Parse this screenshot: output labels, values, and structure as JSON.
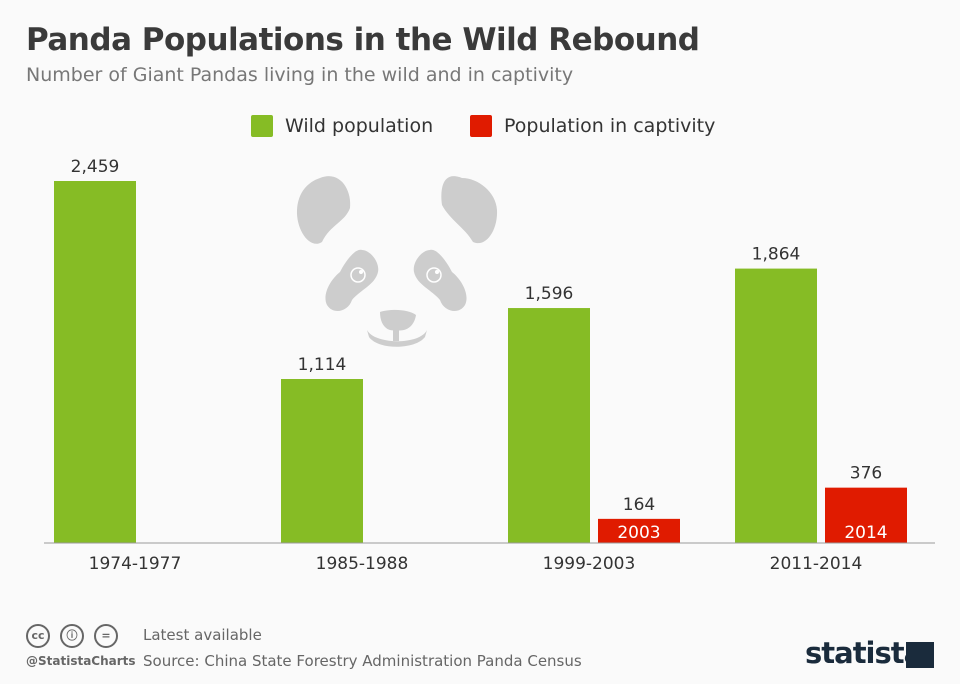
{
  "chart_data": {
    "type": "bar",
    "title": "Panda Populations in the Wild Rebound",
    "subtitle": "Number of Giant Pandas living in the wild and in captivity",
    "categories": [
      "1974-1977",
      "1985-1988",
      "1999-2003",
      "2011-2014"
    ],
    "series": [
      {
        "name": "Wild population",
        "color": "#86bc25",
        "values": [
          2459,
          1114,
          1596,
          1864
        ],
        "labels": [
          "2,459",
          "1,114",
          "1,596",
          "1,864"
        ]
      },
      {
        "name": "Population in captivity",
        "color": "#e01b00",
        "values": [
          null,
          null,
          164,
          376
        ],
        "labels": [
          "",
          "",
          "164",
          "376"
        ],
        "inner_labels": [
          "",
          "",
          "2003",
          "2014"
        ]
      }
    ],
    "ylim": [
      0,
      2459
    ],
    "grid": false,
    "legend": "top-center"
  },
  "footer": {
    "note": "Latest available",
    "source": "Source: China State Forestry Administration Panda Census",
    "handle": "@StatistaCharts",
    "license_icons": [
      "cc",
      "by",
      "="
    ],
    "brand": "statista"
  }
}
